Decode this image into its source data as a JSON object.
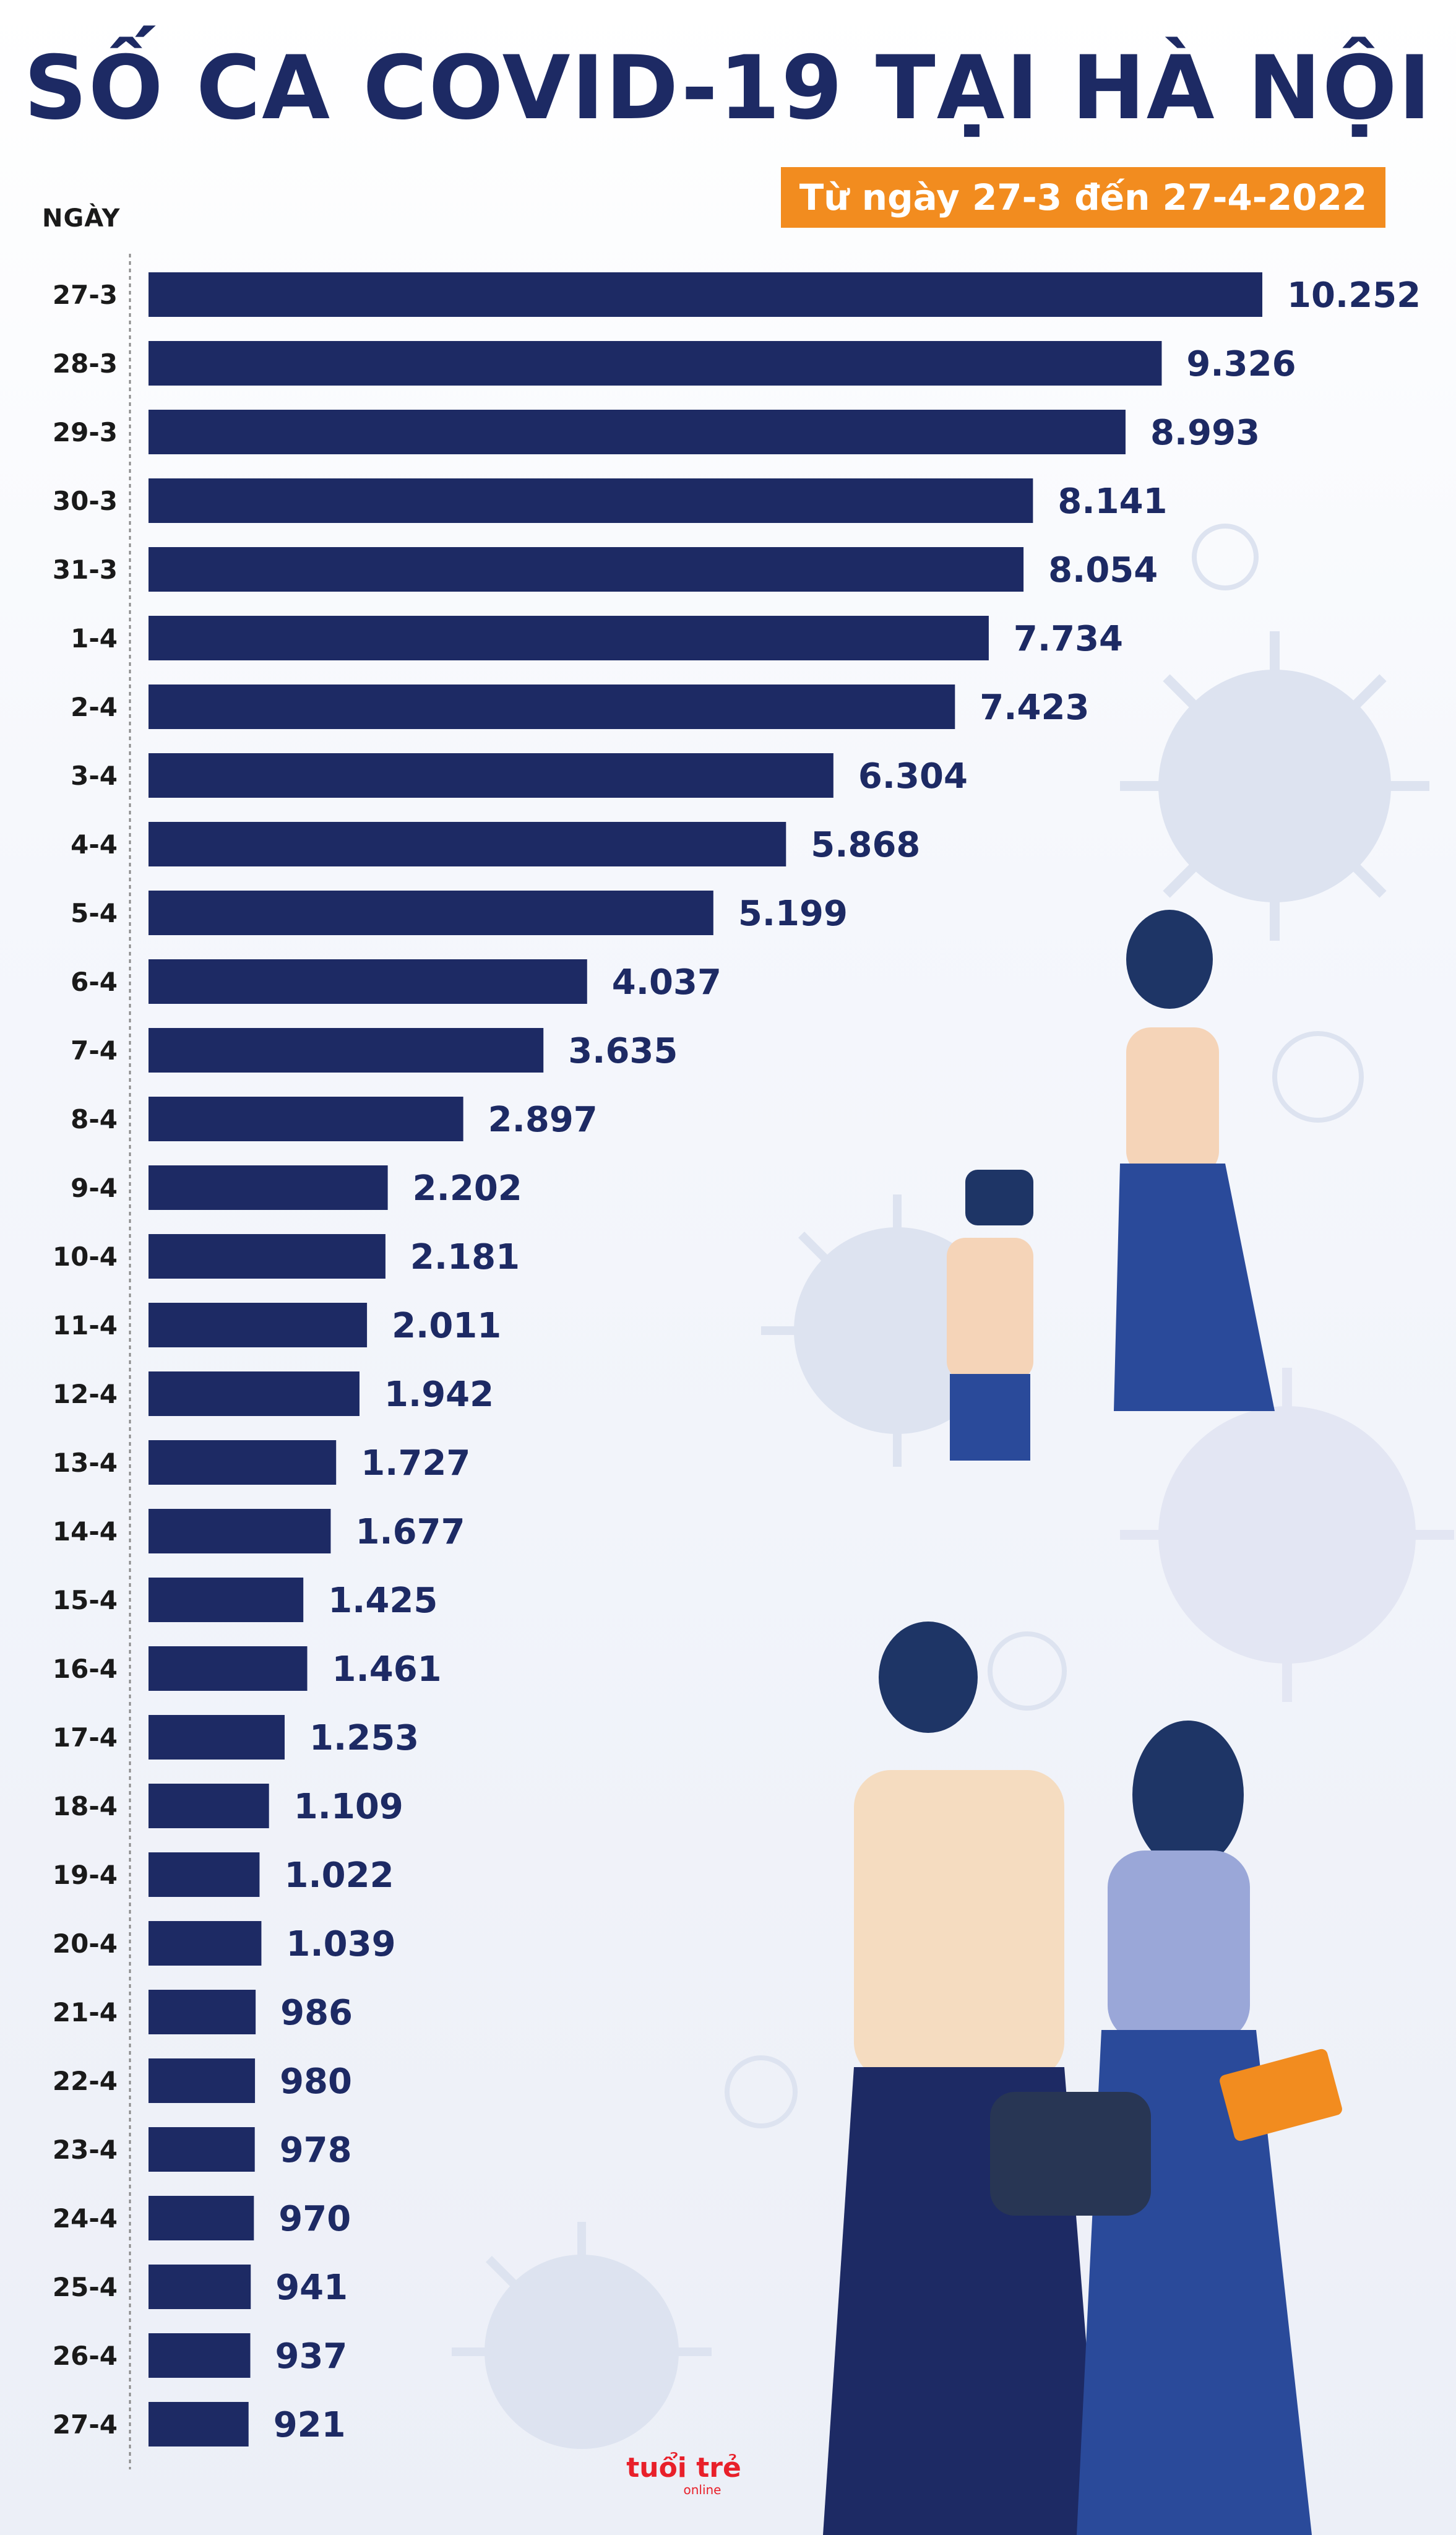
{
  "chart_data": {
    "type": "bar",
    "orientation": "horizontal",
    "title": "SỐ CA COVID-19 TẠI HÀ NỘI",
    "subtitle": "Từ ngày 27-3 đến 27-4-2022",
    "ylabel": "NGÀY",
    "xlabel": "",
    "categories": [
      "27-3",
      "28-3",
      "29-3",
      "30-3",
      "31-3",
      "1-4",
      "2-4",
      "3-4",
      "4-4",
      "5-4",
      "6-4",
      "7-4",
      "8-4",
      "9-4",
      "10-4",
      "11-4",
      "12-4",
      "13-4",
      "14-4",
      "15-4",
      "16-4",
      "17-4",
      "18-4",
      "19-4",
      "20-4",
      "21-4",
      "22-4",
      "23-4",
      "24-4",
      "25-4",
      "26-4",
      "27-4"
    ],
    "values": [
      10252,
      9326,
      8993,
      8141,
      8054,
      7734,
      7423,
      6304,
      5868,
      5199,
      4037,
      3635,
      2897,
      2202,
      2181,
      2011,
      1942,
      1727,
      1677,
      1425,
      1461,
      1253,
      1109,
      1022,
      1039,
      986,
      980,
      978,
      970,
      941,
      937,
      921
    ],
    "value_labels": [
      "10.252",
      "9.326",
      "8.993",
      "8.141",
      "8.054",
      "7.734",
      "7.423",
      "6.304",
      "5.868",
      "5.199",
      "4.037",
      "3.635",
      "2.897",
      "2.202",
      "2.181",
      "2.011",
      "1.942",
      "1.727",
      "1.677",
      "1.425",
      "1.461",
      "1.253",
      "1.109",
      "1.022",
      "1.039",
      "986",
      "980",
      "978",
      "970",
      "941",
      "937",
      "921"
    ],
    "xlim": [
      0,
      10252
    ],
    "grid": false,
    "legend": "none"
  },
  "colors": {
    "bar": "#1d2a64",
    "title": "#1d2a64",
    "subtitle_bg": "#f28c1f",
    "background_tint": "#eef1f8",
    "virus": "#d9e0ef"
  },
  "logo": {
    "text_top": "tuổi trẻ",
    "text_bottom": "online"
  }
}
